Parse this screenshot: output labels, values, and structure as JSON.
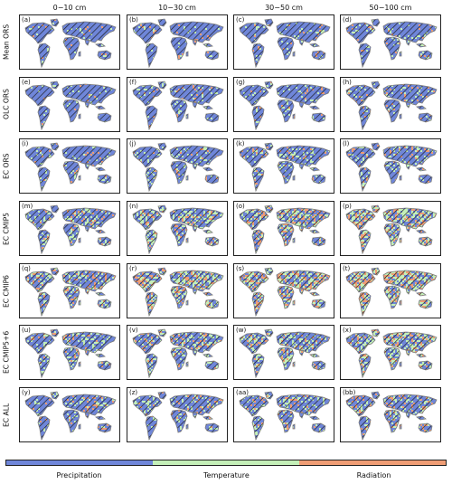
{
  "columns": [
    "0−10 cm",
    "10−30 cm",
    "30−50 cm",
    "50−100 cm"
  ],
  "rows": [
    "Mean ORS",
    "OLC ORS",
    "EC ORS",
    "EC CMIP5",
    "EC CMIP6",
    "EC CMIP5+6",
    "EC ALL"
  ],
  "panel_labels": [
    [
      "(a)",
      "(b)",
      "(c)",
      "(d)"
    ],
    [
      "(e)",
      "(f)",
      "(g)",
      "(h)"
    ],
    [
      "(i)",
      "(j)",
      "(k)",
      "(l)"
    ],
    [
      "(m)",
      "(n)",
      "(o)",
      "(p)"
    ],
    [
      "(q)",
      "(r)",
      "(s)",
      "(t)"
    ],
    [
      "(u)",
      "(v)",
      "(w)",
      "(x)"
    ],
    [
      "(y)",
      "(z)",
      "(aa)",
      "(bb)"
    ]
  ],
  "legend": {
    "categories": [
      "Precipitation",
      "Temperature",
      "Radiation"
    ],
    "colors": [
      "#6f86d9",
      "#c4efb8",
      "#ef9d75"
    ]
  },
  "colors": {
    "land_base": "#6f86d9",
    "coast": "#7a7a7a",
    "hatch": "#1a1a1a"
  },
  "mixing": {
    "temperature_share": [
      [
        0.06,
        0.07,
        0.08,
        0.1
      ],
      [
        0.08,
        0.1,
        0.1,
        0.12
      ],
      [
        0.1,
        0.14,
        0.16,
        0.18
      ],
      [
        0.22,
        0.28,
        0.3,
        0.34
      ],
      [
        0.26,
        0.34,
        0.36,
        0.4
      ],
      [
        0.2,
        0.24,
        0.26,
        0.3
      ],
      [
        0.12,
        0.16,
        0.18,
        0.22
      ]
    ],
    "radiation_share": [
      [
        0.02,
        0.03,
        0.04,
        0.05
      ],
      [
        0.03,
        0.04,
        0.05,
        0.06
      ],
      [
        0.04,
        0.06,
        0.07,
        0.09
      ],
      [
        0.1,
        0.14,
        0.18,
        0.22
      ],
      [
        0.14,
        0.2,
        0.24,
        0.3
      ],
      [
        0.08,
        0.12,
        0.14,
        0.18
      ],
      [
        0.05,
        0.07,
        0.09,
        0.12
      ]
    ]
  }
}
